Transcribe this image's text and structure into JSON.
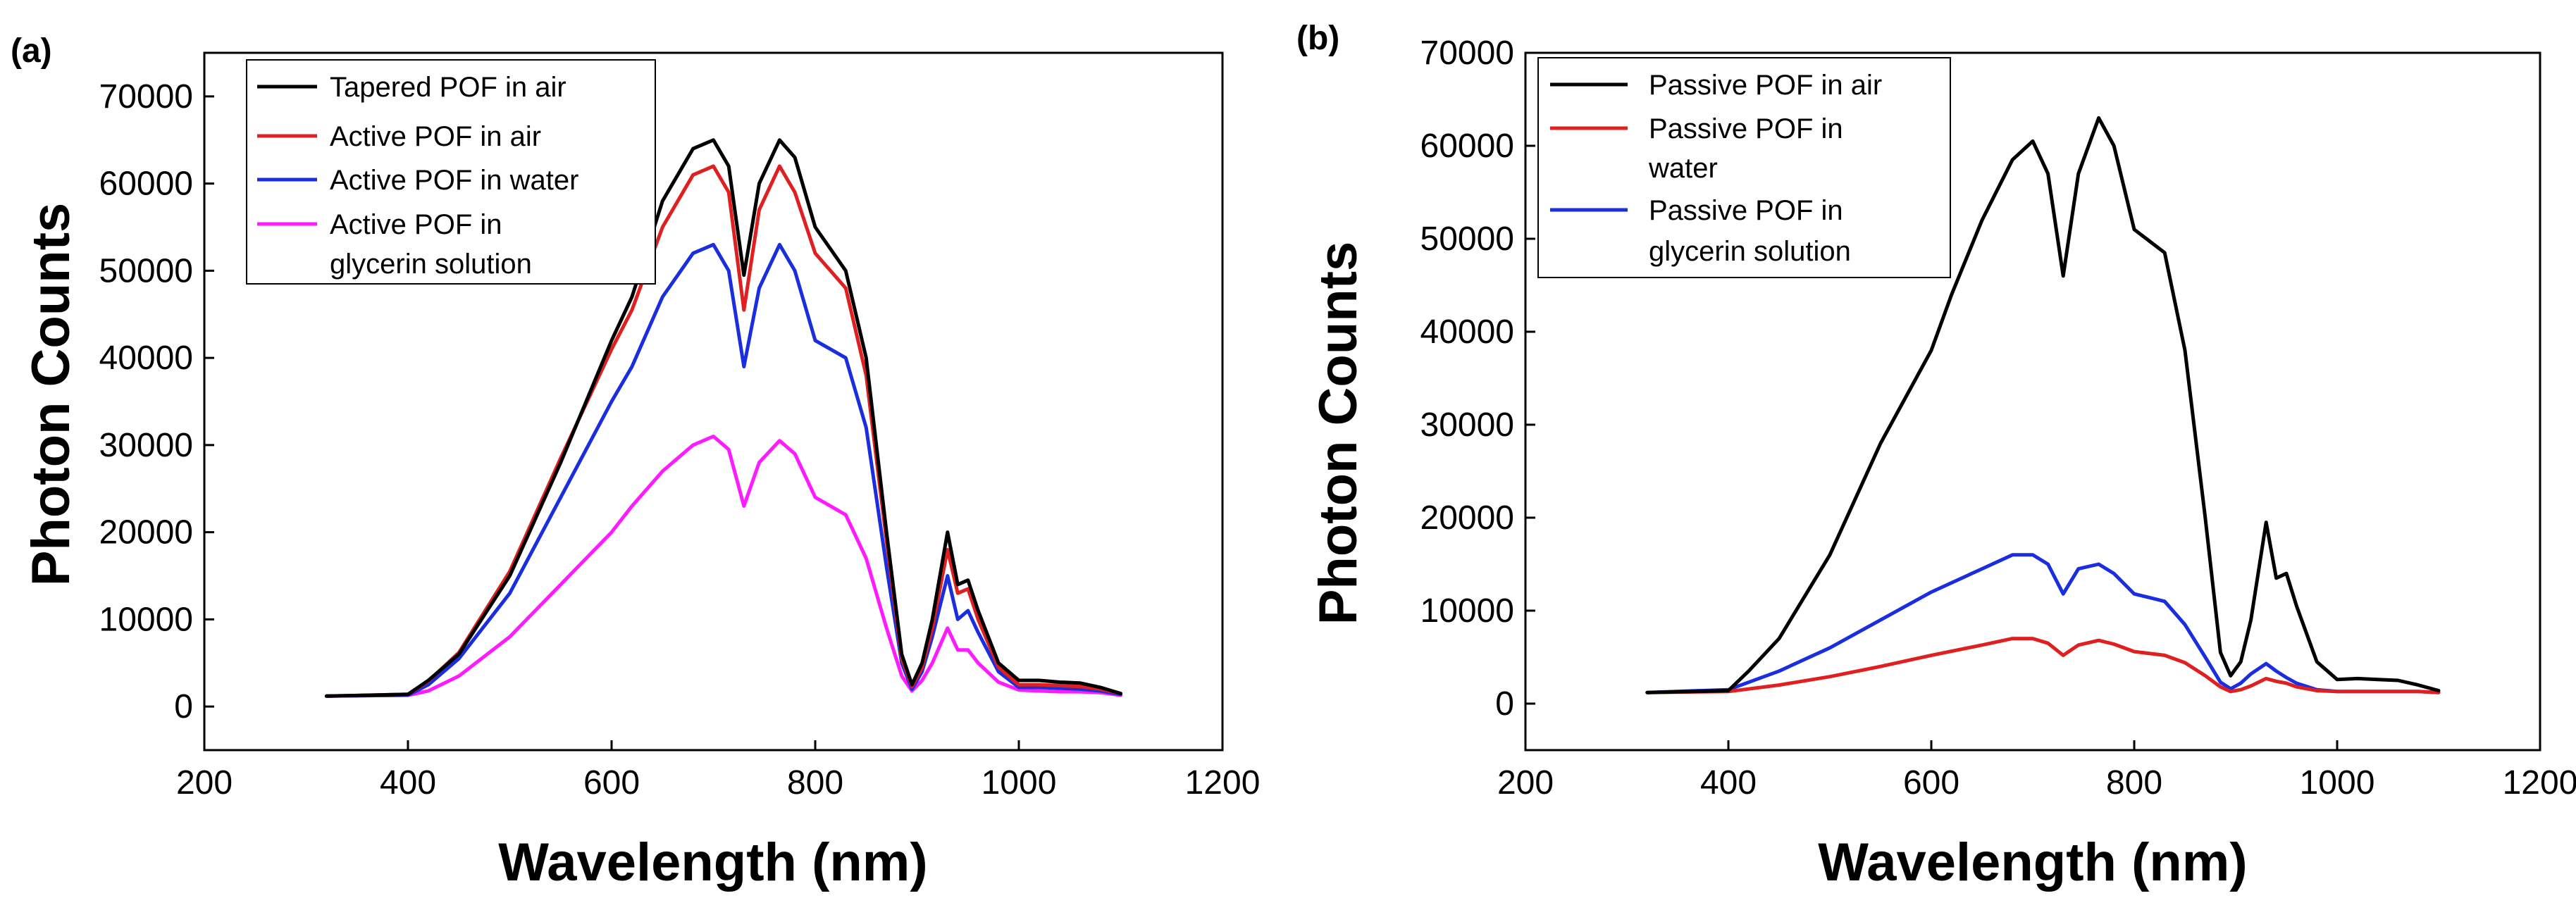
{
  "chart_data": [
    {
      "type": "line",
      "panel_label": "(a)",
      "xlabel": "Wavelength (nm)",
      "ylabel": "Photon Counts",
      "xlim": [
        200,
        1200
      ],
      "ylim": [
        -5000,
        75000
      ],
      "xticks": [
        200,
        400,
        600,
        800,
        1000,
        1200
      ],
      "yticks": [
        0,
        10000,
        20000,
        30000,
        40000,
        50000,
        60000,
        70000
      ],
      "legend_position": "top-left",
      "series": [
        {
          "name": "Tapered POF in air",
          "color": "#000000",
          "x": [
            320,
            400,
            420,
            450,
            500,
            550,
            600,
            620,
            650,
            680,
            700,
            715,
            730,
            745,
            765,
            780,
            800,
            830,
            850,
            870,
            885,
            895,
            905,
            915,
            930,
            940,
            950,
            960,
            980,
            1000,
            1020,
            1040,
            1060,
            1080,
            1100
          ],
          "values": [
            1200,
            1400,
            3000,
            6000,
            15000,
            28000,
            42000,
            47000,
            58000,
            64000,
            65000,
            62000,
            49500,
            60000,
            65000,
            63000,
            55000,
            50000,
            40000,
            20000,
            6000,
            2500,
            5000,
            10000,
            20000,
            14000,
            14500,
            11000,
            5000,
            3000,
            3000,
            2800,
            2700,
            2200,
            1500
          ]
        },
        {
          "name": "Active POF in air",
          "color": "#e02020",
          "x": [
            320,
            400,
            420,
            450,
            500,
            550,
            600,
            620,
            650,
            680,
            700,
            715,
            730,
            745,
            765,
            780,
            800,
            830,
            850,
            870,
            885,
            895,
            905,
            915,
            930,
            940,
            950,
            960,
            980,
            1000,
            1020,
            1040,
            1060,
            1080,
            1100
          ],
          "values": [
            1200,
            1400,
            2900,
            6200,
            15500,
            28500,
            41000,
            45500,
            55000,
            61000,
            62000,
            59000,
            45500,
            57000,
            62000,
            59000,
            52000,
            48000,
            38000,
            19000,
            5500,
            2300,
            4500,
            9000,
            18000,
            13000,
            13500,
            10000,
            4500,
            2500,
            2500,
            2400,
            2300,
            2000,
            1500
          ]
        },
        {
          "name": "Active POF in water",
          "color": "#1a2ee0",
          "x": [
            320,
            400,
            420,
            450,
            500,
            550,
            600,
            620,
            650,
            680,
            700,
            715,
            730,
            745,
            765,
            780,
            800,
            830,
            850,
            870,
            885,
            895,
            905,
            915,
            930,
            940,
            950,
            960,
            980,
            1000,
            1020,
            1040,
            1060,
            1080,
            1100
          ],
          "values": [
            1200,
            1300,
            2500,
            5500,
            13000,
            24000,
            35000,
            39000,
            47000,
            52000,
            53000,
            50000,
            39000,
            48000,
            53000,
            50000,
            42000,
            40000,
            32000,
            16000,
            5000,
            2000,
            4000,
            8000,
            15000,
            10000,
            11000,
            8500,
            4000,
            2200,
            2200,
            2100,
            2000,
            1800,
            1400
          ]
        },
        {
          "name": "Active POF in glycerin solution",
          "color": "#ff1aff",
          "x": [
            320,
            400,
            420,
            450,
            500,
            550,
            600,
            620,
            650,
            680,
            700,
            715,
            730,
            745,
            765,
            780,
            800,
            830,
            850,
            870,
            885,
            895,
            905,
            915,
            930,
            940,
            950,
            960,
            980,
            1000,
            1020,
            1040,
            1060,
            1080,
            1100
          ],
          "values": [
            1200,
            1300,
            1800,
            3500,
            8000,
            14000,
            20000,
            23000,
            27000,
            30000,
            31000,
            29500,
            23000,
            28000,
            30500,
            29000,
            24000,
            22000,
            17000,
            9000,
            3500,
            1800,
            3000,
            5000,
            9000,
            6500,
            6500,
            5000,
            2800,
            1900,
            1800,
            1700,
            1700,
            1600,
            1300
          ]
        }
      ],
      "legend_entries": [
        "Tapered POF in air",
        "Active POF in air",
        "Active POF in water",
        "Active POF in",
        "glycerin solution"
      ]
    },
    {
      "type": "line",
      "panel_label": "(b)",
      "xlabel": "Wavelength (nm)",
      "ylabel": "Photon Counts",
      "xlim": [
        200,
        1200
      ],
      "ylim": [
        -5000,
        70000
      ],
      "xticks": [
        200,
        400,
        600,
        800,
        1000,
        1200
      ],
      "yticks": [
        0,
        10000,
        20000,
        30000,
        40000,
        50000,
        60000,
        70000
      ],
      "legend_position": "top-left",
      "series": [
        {
          "name": "Passive POF in air",
          "color": "#000000",
          "x": [
            320,
            400,
            420,
            450,
            500,
            550,
            600,
            620,
            650,
            680,
            700,
            715,
            730,
            745,
            765,
            780,
            800,
            830,
            850,
            870,
            885,
            895,
            905,
            915,
            930,
            940,
            950,
            960,
            980,
            1000,
            1020,
            1040,
            1060,
            1080,
            1100
          ],
          "values": [
            1200,
            1400,
            3500,
            7000,
            16000,
            28000,
            38000,
            44000,
            52000,
            58500,
            60500,
            57000,
            46000,
            57000,
            63000,
            60000,
            51000,
            48500,
            38000,
            20000,
            5500,
            3000,
            4500,
            9000,
            19500,
            13500,
            14000,
            10500,
            4500,
            2600,
            2700,
            2600,
            2500,
            2000,
            1400
          ]
        },
        {
          "name": "Passive POF in water",
          "color": "#e02020",
          "x": [
            320,
            400,
            450,
            500,
            550,
            600,
            650,
            680,
            700,
            715,
            730,
            745,
            765,
            780,
            800,
            830,
            850,
            870,
            885,
            895,
            905,
            915,
            930,
            940,
            950,
            960,
            980,
            1000,
            1020,
            1040,
            1060,
            1080,
            1100
          ],
          "values": [
            1200,
            1300,
            2000,
            2900,
            4000,
            5200,
            6300,
            7000,
            7000,
            6500,
            5200,
            6300,
            6800,
            6400,
            5600,
            5200,
            4400,
            3000,
            1800,
            1300,
            1500,
            1900,
            2700,
            2400,
            2200,
            1800,
            1400,
            1300,
            1300,
            1300,
            1300,
            1300,
            1200
          ]
        },
        {
          "name": "Passive POF in glycerin solution",
          "color": "#1a2ee0",
          "x": [
            320,
            400,
            450,
            500,
            550,
            600,
            650,
            680,
            700,
            715,
            730,
            745,
            765,
            780,
            800,
            830,
            850,
            870,
            885,
            895,
            905,
            915,
            930,
            940,
            950,
            960,
            980,
            1000,
            1020,
            1040,
            1060,
            1080,
            1100
          ],
          "values": [
            1200,
            1500,
            3500,
            6000,
            9000,
            12000,
            14500,
            16000,
            16000,
            15000,
            11800,
            14500,
            15000,
            14000,
            11800,
            11000,
            8500,
            5000,
            2300,
            1600,
            2200,
            3200,
            4300,
            3500,
            2800,
            2200,
            1500,
            1300,
            1300,
            1300,
            1300,
            1300,
            1200
          ]
        }
      ],
      "legend_entries": [
        "Passive POF in air",
        "Passive POF in",
        "water",
        "Passive POF in",
        "glycerin solution"
      ]
    }
  ]
}
